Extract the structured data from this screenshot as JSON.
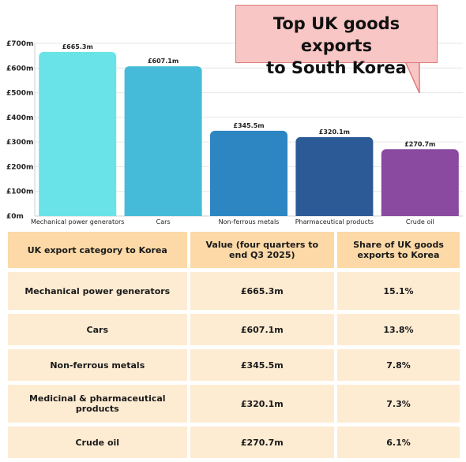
{
  "title": "Top UK goods exports to South Korea",
  "title_lines": [
    "Top UK goods",
    "to South Korea"
  ],
  "title_line1": "Top UK goods exports",
  "title_line2": "to South Korea",
  "chart_data": {
    "type": "bar",
    "categories": [
      "Mechanical power generators",
      "Cars",
      "Non-ferrous metals",
      "Pharmaceutical products",
      "Crude oil"
    ],
    "values": [
      665.3,
      607.1,
      345.5,
      320.1,
      270.7
    ],
    "value_labels": [
      "£665.3m",
      "£607.1m",
      "£345.5m",
      "£320.1m",
      "£270.7m"
    ],
    "bar_colors": [
      "#6ae3e8",
      "#45bbd9",
      "#2d86c2",
      "#2c5a96",
      "#8a4aa0"
    ],
    "y_ticks": [
      "£0m",
      "£100m",
      "£200m",
      "£300m",
      "£400m",
      "£500m",
      "£600m",
      "£700m"
    ],
    "ylim": [
      0,
      700
    ],
    "xlabel": "",
    "ylabel": "",
    "grid": true
  },
  "table": {
    "headers": [
      "UK export category to Korea",
      "Value (four quarters to end Q3 2025)",
      "Share of UK goods exports to Korea"
    ],
    "rows": [
      [
        "Mechanical power generators",
        "£665.3m",
        "15.1%"
      ],
      [
        "Cars",
        "£607.1m",
        "13.8%"
      ],
      [
        "Non-ferrous metals",
        "£345.5m",
        "7.8%"
      ],
      [
        "Medicinal & pharmaceutical products",
        "£320.1m",
        "7.3%"
      ],
      [
        "Crude oil",
        "£270.7m",
        "6.1%"
      ]
    ]
  }
}
